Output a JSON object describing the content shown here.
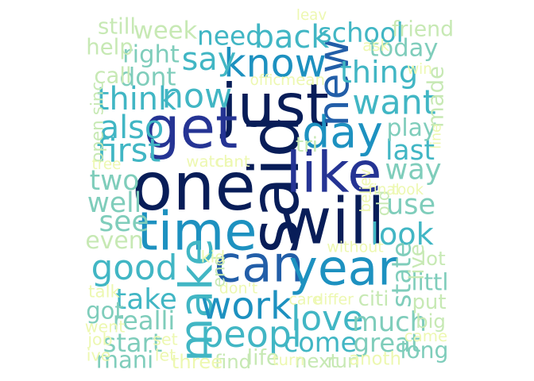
{
  "word_cloud": {
    "palette": [
      "#081d58",
      "#253494",
      "#225ea8",
      "#1d91c0",
      "#41b6c4",
      "#7fcdbb",
      "#c7e9b4",
      "#edf8b1",
      "#ffffd9"
    ],
    "words": [
      {
        "text": "said",
        "weight": 1.0,
        "color": "#081d58"
      },
      {
        "text": "one",
        "weight": 0.97,
        "color": "#081d58"
      },
      {
        "text": "will",
        "weight": 0.93,
        "color": "#081d58"
      },
      {
        "text": "just",
        "weight": 0.85,
        "color": "#081d58"
      },
      {
        "text": "get",
        "weight": 0.82,
        "color": "#253494"
      },
      {
        "text": "like",
        "weight": 0.8,
        "color": "#253494"
      },
      {
        "text": "time",
        "weight": 0.75,
        "color": "#1d91c0"
      },
      {
        "text": "can",
        "weight": 0.7,
        "color": "#225ea8"
      },
      {
        "text": "year",
        "weight": 0.68,
        "color": "#1d91c0"
      },
      {
        "text": "make",
        "weight": 0.62,
        "color": "#41b6c4"
      },
      {
        "text": "day",
        "weight": 0.6,
        "color": "#1d91c0"
      },
      {
        "text": "new",
        "weight": 0.58,
        "color": "#225ea8"
      },
      {
        "text": "know",
        "weight": 0.52,
        "color": "#1d91c0"
      },
      {
        "text": "work",
        "weight": 0.5,
        "color": "#1d91c0"
      },
      {
        "text": "peopl",
        "weight": 0.48,
        "color": "#41b6c4"
      },
      {
        "text": "love",
        "weight": 0.45,
        "color": "#41b6c4"
      },
      {
        "text": "good",
        "weight": 0.45,
        "color": "#41b6c4"
      },
      {
        "text": "want",
        "weight": 0.44,
        "color": "#41b6c4"
      },
      {
        "text": "now",
        "weight": 0.44,
        "color": "#41b6c4"
      },
      {
        "text": "first",
        "weight": 0.42,
        "color": "#41b6c4"
      },
      {
        "text": "also",
        "weight": 0.4,
        "color": "#41b6c4"
      },
      {
        "text": "think",
        "weight": 0.4,
        "color": "#41b6c4"
      },
      {
        "text": "say",
        "weight": 0.4,
        "color": "#41b6c4"
      },
      {
        "text": "back",
        "weight": 0.4,
        "color": "#41b6c4"
      },
      {
        "text": "look",
        "weight": 0.38,
        "color": "#41b6c4"
      },
      {
        "text": "thing",
        "weight": 0.38,
        "color": "#41b6c4"
      },
      {
        "text": "take",
        "weight": 0.35,
        "color": "#41b6c4"
      },
      {
        "text": "see",
        "weight": 0.35,
        "color": "#7fcdbb"
      },
      {
        "text": "way",
        "weight": 0.34,
        "color": "#7fcdbb"
      },
      {
        "text": "use",
        "weight": 0.34,
        "color": "#7fcdbb"
      },
      {
        "text": "last",
        "weight": 0.33,
        "color": "#41b6c4"
      },
      {
        "text": "two",
        "weight": 0.33,
        "color": "#7fcdbb"
      },
      {
        "text": "well",
        "weight": 0.33,
        "color": "#7fcdbb"
      },
      {
        "text": "come",
        "weight": 0.32,
        "color": "#41b6c4"
      },
      {
        "text": "much",
        "weight": 0.32,
        "color": "#7fcdbb"
      },
      {
        "text": "school",
        "weight": 0.32,
        "color": "#41b6c4"
      },
      {
        "text": "need",
        "weight": 0.31,
        "color": "#41b6c4"
      },
      {
        "text": "state",
        "weight": 0.31,
        "color": "#7fcdbb"
      },
      {
        "text": "great",
        "weight": 0.3,
        "color": "#7fcdbb"
      },
      {
        "text": "realli",
        "weight": 0.3,
        "color": "#7fcdbb"
      },
      {
        "text": "start",
        "weight": 0.3,
        "color": "#7fcdbb"
      },
      {
        "text": "dont",
        "weight": 0.29,
        "color": "#7fcdbb"
      },
      {
        "text": "right",
        "weight": 0.28,
        "color": "#7fcdbb"
      },
      {
        "text": "week",
        "weight": 0.28,
        "color": "#c7e9b4"
      },
      {
        "text": "today",
        "weight": 0.28,
        "color": "#7fcdbb"
      },
      {
        "text": "play",
        "weight": 0.27,
        "color": "#7fcdbb"
      },
      {
        "text": "even",
        "weight": 0.27,
        "color": "#c7e9b4"
      },
      {
        "text": "got",
        "weight": 0.26,
        "color": "#7fcdbb"
      },
      {
        "text": "littl",
        "weight": 0.26,
        "color": "#7fcdbb"
      },
      {
        "text": "mani",
        "weight": 0.26,
        "color": "#7fcdbb"
      },
      {
        "text": "long",
        "weight": 0.25,
        "color": "#7fcdbb"
      },
      {
        "text": "still",
        "weight": 0.24,
        "color": "#c7e9b4"
      },
      {
        "text": "help",
        "weight": 0.24,
        "color": "#c7e9b4"
      },
      {
        "text": "call",
        "weight": 0.24,
        "color": "#c7e9b4"
      },
      {
        "text": "made",
        "weight": 0.24,
        "color": "#c7e9b4"
      },
      {
        "text": "friend",
        "weight": 0.23,
        "color": "#c7e9b4"
      },
      {
        "text": "life",
        "weight": 0.23,
        "color": "#c7e9b4"
      },
      {
        "text": "put",
        "weight": 0.22,
        "color": "#c7e9b4"
      },
      {
        "text": "citi",
        "weight": 0.22,
        "color": "#c7e9b4"
      },
      {
        "text": "live",
        "weight": 0.22,
        "color": "#c7e9b4"
      },
      {
        "text": "tri",
        "weight": 0.22,
        "color": "#c7e9b4"
      },
      {
        "text": "find",
        "weight": 0.2,
        "color": "#c7e9b4"
      },
      {
        "text": "three",
        "weight": 0.2,
        "color": "#edf8b1"
      },
      {
        "text": "next",
        "weight": 0.2,
        "color": "#c7e9b4"
      },
      {
        "text": "run",
        "weight": 0.2,
        "color": "#c7e9b4"
      },
      {
        "text": "big",
        "weight": 0.2,
        "color": "#c7e9b4"
      },
      {
        "text": "lot",
        "weight": 0.2,
        "color": "#c7e9b4"
      },
      {
        "text": "anoth",
        "weight": 0.18,
        "color": "#edf8b1"
      },
      {
        "text": "open",
        "weight": 0.16,
        "color": "#c7e9b4"
      },
      {
        "text": "old",
        "weight": 0.16,
        "color": "#c7e9b4"
      },
      {
        "text": "sinc",
        "weight": 0.16,
        "color": "#c7e9b4"
      },
      {
        "text": "end",
        "weight": 0.16,
        "color": "#c7e9b4"
      },
      {
        "text": "talk",
        "weight": 0.16,
        "color": "#edf8b1"
      },
      {
        "text": "went",
        "weight": 0.15,
        "color": "#edf8b1"
      },
      {
        "text": "job",
        "weight": 0.15,
        "color": "#edf8b1"
      },
      {
        "text": "ive",
        "weight": 0.15,
        "color": "#edf8b1"
      },
      {
        "text": "let",
        "weight": 0.15,
        "color": "#edf8b1"
      },
      {
        "text": "set",
        "weight": 0.15,
        "color": "#edf8b1"
      },
      {
        "text": "kid",
        "weight": 0.15,
        "color": "#edf8b1"
      },
      {
        "text": "turn",
        "weight": 0.14,
        "color": "#edf8b1"
      },
      {
        "text": "came",
        "weight": 0.14,
        "color": "#edf8b1"
      },
      {
        "text": "ask",
        "weight": 0.14,
        "color": "#edf8b1"
      },
      {
        "text": "mean",
        "weight": 0.14,
        "color": "#edf8b1"
      },
      {
        "text": "watch",
        "weight": 0.14,
        "color": "#edf8b1"
      },
      {
        "text": "cant",
        "weight": 0.14,
        "color": "#edf8b1"
      },
      {
        "text": "care",
        "weight": 0.13,
        "color": "#edf8b1"
      },
      {
        "text": "differ",
        "weight": 0.13,
        "color": "#edf8b1"
      },
      {
        "text": "without",
        "weight": 0.13,
        "color": "#edf8b1"
      },
      {
        "text": "don't",
        "weight": 0.13,
        "color": "#edf8b1"
      },
      {
        "text": "final",
        "weight": 0.12,
        "color": "#edf8b1"
      },
      {
        "text": "took",
        "weight": 0.12,
        "color": "#edf8b1"
      },
      {
        "text": "believ",
        "weight": 0.12,
        "color": "#edf8b1"
      },
      {
        "text": "tree",
        "weight": 0.12,
        "color": "#edf8b1"
      },
      {
        "text": "leav",
        "weight": 0.12,
        "color": "#edf8b1"
      },
      {
        "text": "win",
        "weight": 0.12,
        "color": "#edf8b1"
      },
      {
        "text": "offic",
        "weight": 0.12,
        "color": "#edf8b1"
      },
      {
        "text": "line",
        "weight": 0.11,
        "color": "#edf8b1"
      }
    ]
  }
}
